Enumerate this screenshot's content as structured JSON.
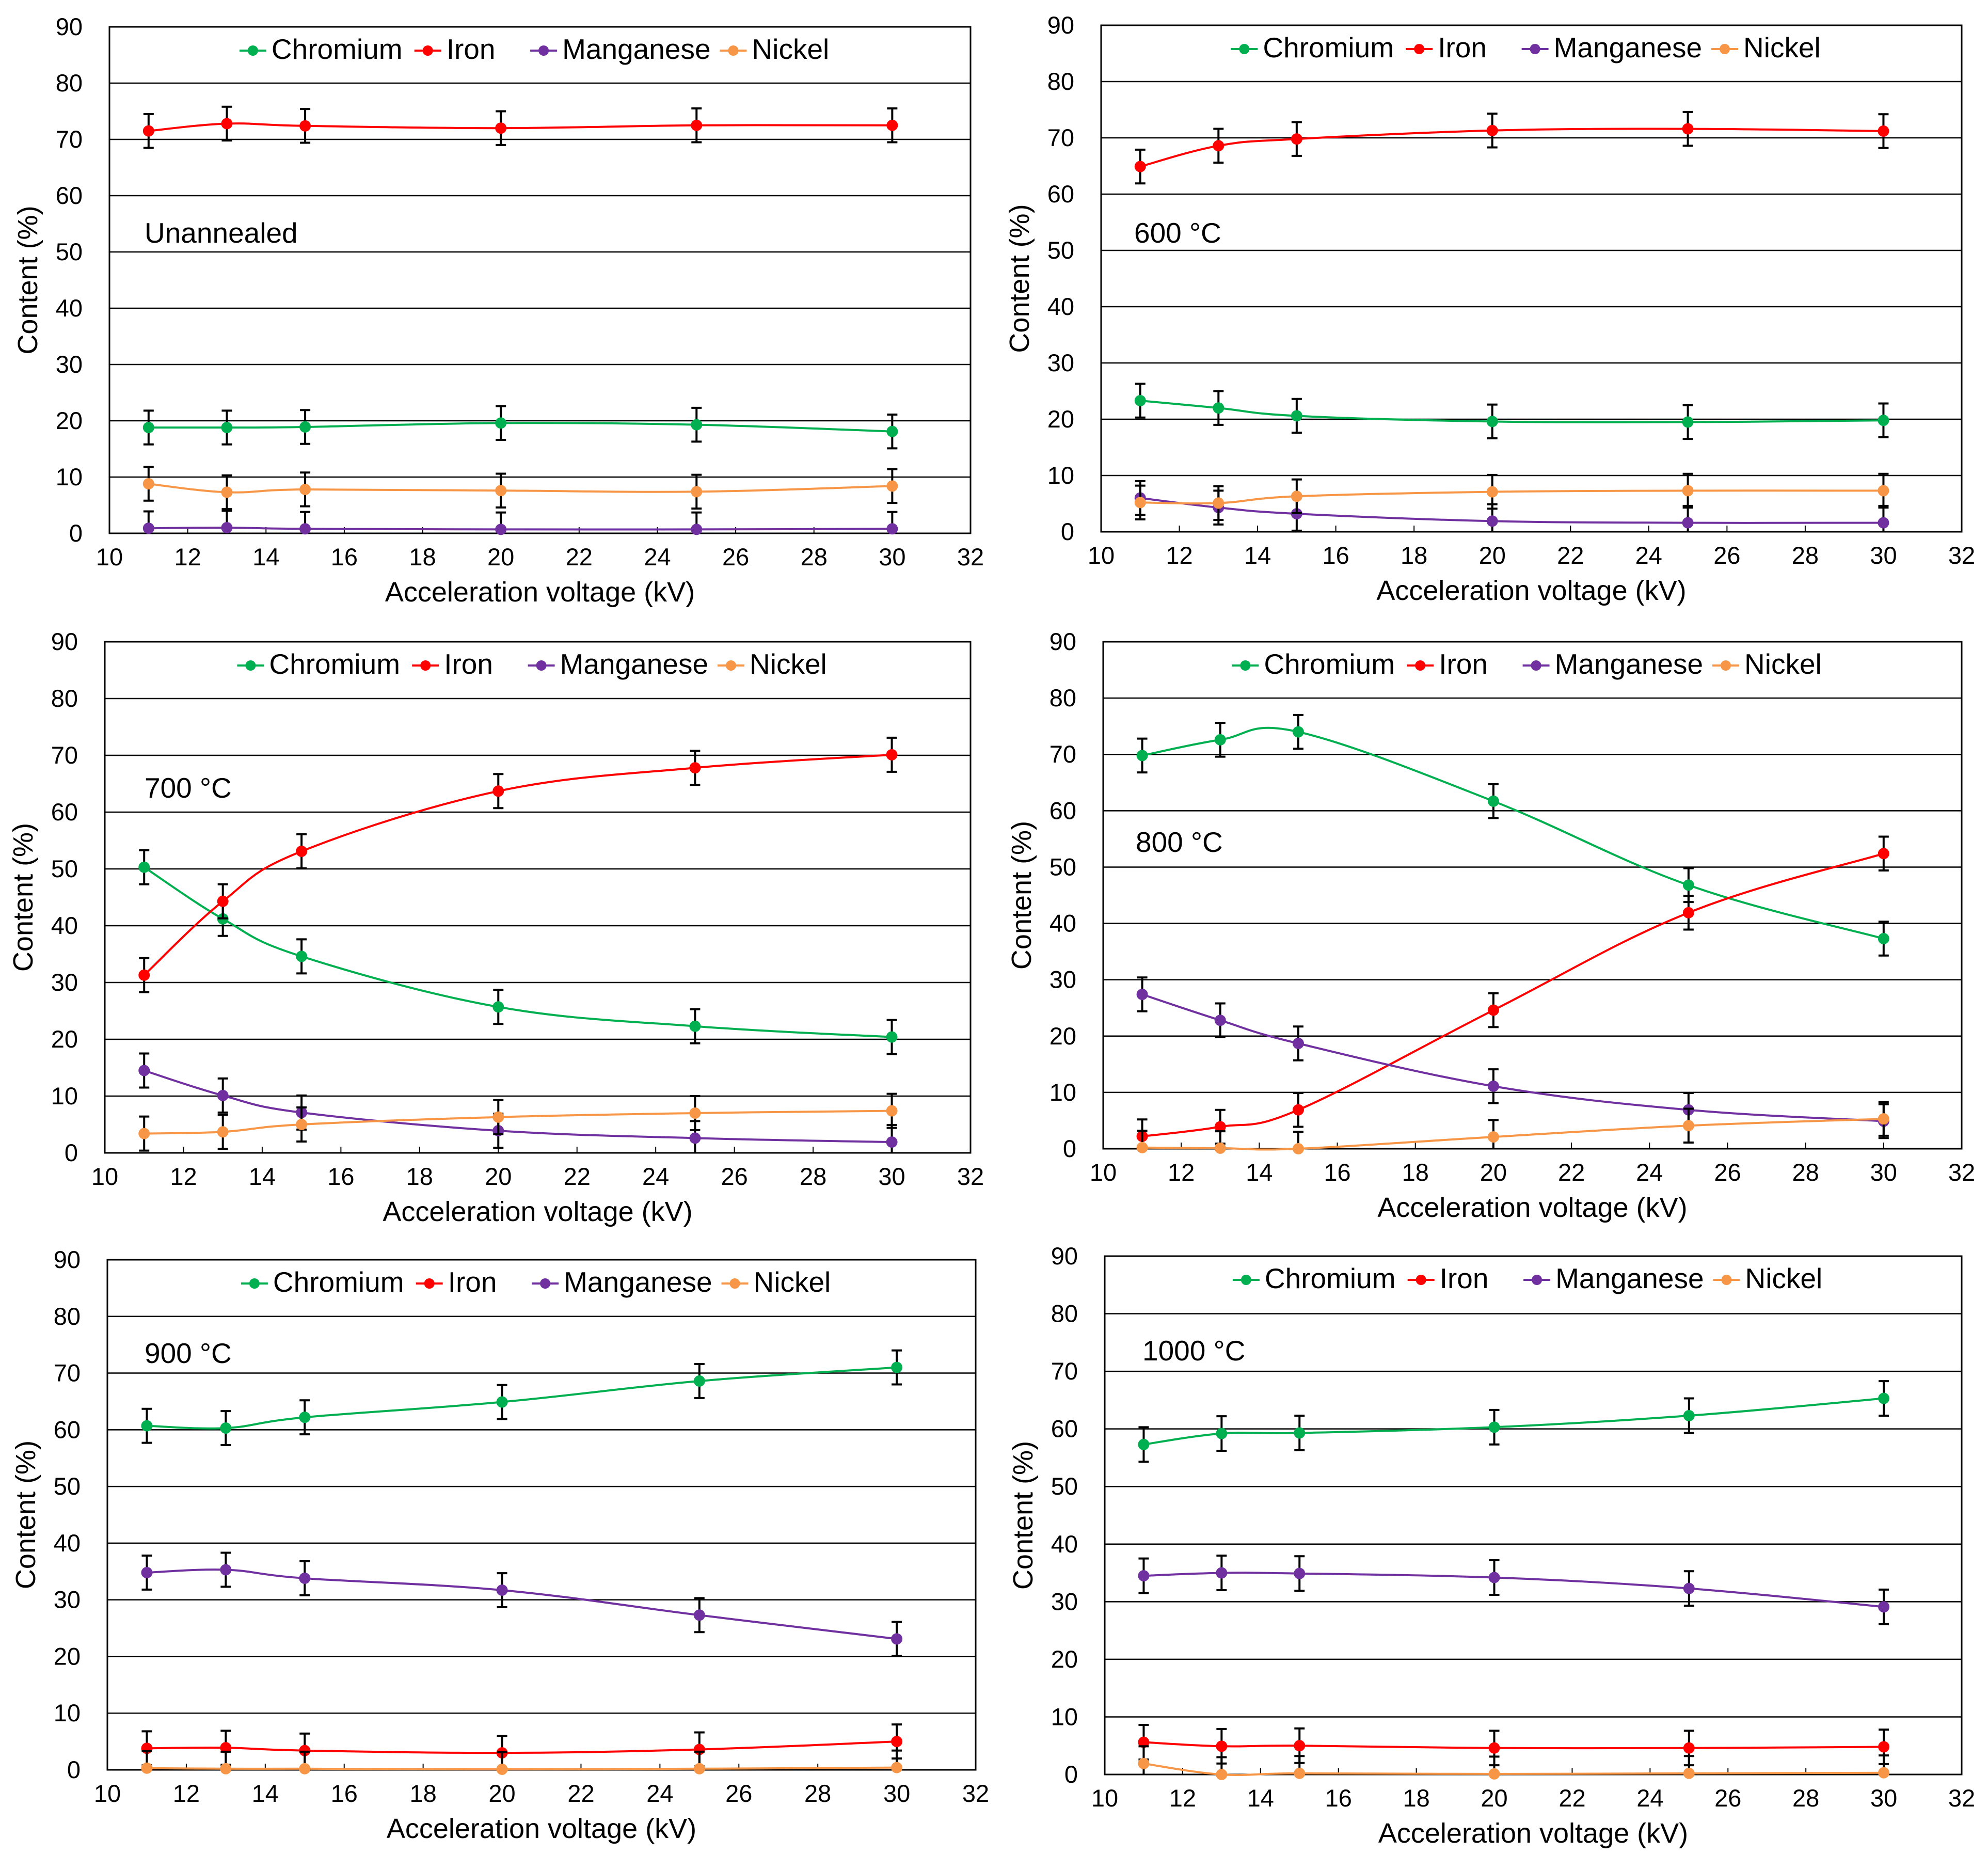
{
  "chart_data": [
    {
      "type": "line",
      "annotation": "Unannealed",
      "xlabel": "Acceleration voltage (kV)",
      "ylabel": "Content (%)",
      "xlim": [
        10,
        32
      ],
      "ylim": [
        0,
        90
      ],
      "x_ticks": [
        10,
        12,
        14,
        16,
        18,
        20,
        22,
        24,
        26,
        28,
        30,
        32
      ],
      "y_ticks": [
        0,
        10,
        20,
        30,
        40,
        50,
        60,
        70,
        80,
        90
      ],
      "legend": "top",
      "x": [
        11,
        13,
        15,
        20,
        25,
        30
      ],
      "series": [
        {
          "name": "Chromium",
          "color": "#00b050",
          "values": [
            18.8,
            18.8,
            18.9,
            19.6,
            19.3,
            18.1
          ]
        },
        {
          "name": "Iron",
          "color": "#ff0000",
          "values": [
            71.5,
            72.8,
            72.4,
            72.0,
            72.5,
            72.5
          ]
        },
        {
          "name": "Manganese",
          "color": "#7030a0",
          "values": [
            0.9,
            1.0,
            0.8,
            0.7,
            0.7,
            0.8
          ]
        },
        {
          "name": "Nickel",
          "color": "#f79646",
          "values": [
            8.8,
            7.3,
            7.8,
            7.6,
            7.4,
            8.4
          ]
        }
      ]
    },
    {
      "type": "line",
      "annotation": "600 °C",
      "xlabel": "Acceleration voltage (kV)",
      "ylabel": "Content (%)",
      "xlim": [
        10,
        32
      ],
      "ylim": [
        0,
        90
      ],
      "x_ticks": [
        10,
        12,
        14,
        16,
        18,
        20,
        22,
        24,
        26,
        28,
        30,
        32
      ],
      "y_ticks": [
        0,
        10,
        20,
        30,
        40,
        50,
        60,
        70,
        80,
        90
      ],
      "legend": "top",
      "x": [
        11,
        13,
        15,
        20,
        25,
        30
      ],
      "series": [
        {
          "name": "Chromium",
          "color": "#00b050",
          "values": [
            23.3,
            22.0,
            20.6,
            19.6,
            19.5,
            19.8
          ]
        },
        {
          "name": "Iron",
          "color": "#ff0000",
          "values": [
            64.9,
            68.6,
            69.8,
            71.3,
            71.6,
            71.2
          ]
        },
        {
          "name": "Manganese",
          "color": "#7030a0",
          "values": [
            6.0,
            4.3,
            3.2,
            1.9,
            1.6,
            1.6
          ]
        },
        {
          "name": "Nickel",
          "color": "#f79646",
          "values": [
            5.2,
            5.1,
            6.3,
            7.1,
            7.3,
            7.3
          ]
        }
      ]
    },
    {
      "type": "line",
      "annotation": "700 °C",
      "xlabel": "Acceleration voltage (kV)",
      "ylabel": "Content (%)",
      "xlim": [
        10,
        32
      ],
      "ylim": [
        0,
        90
      ],
      "x_ticks": [
        10,
        12,
        14,
        16,
        18,
        20,
        22,
        24,
        26,
        28,
        30,
        32
      ],
      "y_ticks": [
        0,
        10,
        20,
        30,
        40,
        50,
        60,
        70,
        80,
        90
      ],
      "legend": "top",
      "x": [
        11,
        13,
        15,
        20,
        25,
        30
      ],
      "series": [
        {
          "name": "Chromium",
          "color": "#00b050",
          "values": [
            50.3,
            41.2,
            34.6,
            25.7,
            22.3,
            20.4
          ]
        },
        {
          "name": "Iron",
          "color": "#ff0000",
          "values": [
            31.3,
            44.3,
            53.1,
            63.7,
            67.8,
            70.1
          ]
        },
        {
          "name": "Manganese",
          "color": "#7030a0",
          "values": [
            14.5,
            10.1,
            7.1,
            3.9,
            2.6,
            1.9
          ]
        },
        {
          "name": "Nickel",
          "color": "#f79646",
          "values": [
            3.4,
            3.7,
            5.0,
            6.3,
            7.0,
            7.4
          ]
        }
      ]
    },
    {
      "type": "line",
      "annotation": "800 °C",
      "xlabel": "Acceleration voltage (kV)",
      "ylabel": "Content (%)",
      "xlim": [
        10,
        32
      ],
      "ylim": [
        0,
        90
      ],
      "x_ticks": [
        10,
        12,
        14,
        16,
        18,
        20,
        22,
        24,
        26,
        28,
        30,
        32
      ],
      "y_ticks": [
        0,
        10,
        20,
        30,
        40,
        50,
        60,
        70,
        80,
        90
      ],
      "legend": "top",
      "x": [
        11,
        13,
        15,
        20,
        25,
        30
      ],
      "series": [
        {
          "name": "Chromium",
          "color": "#00b050",
          "values": [
            69.8,
            72.6,
            74.0,
            61.7,
            46.8,
            37.3
          ]
        },
        {
          "name": "Iron",
          "color": "#ff0000",
          "values": [
            2.2,
            3.9,
            6.9,
            24.6,
            41.9,
            52.4
          ]
        },
        {
          "name": "Manganese",
          "color": "#7030a0",
          "values": [
            27.4,
            22.8,
            18.7,
            11.1,
            6.9,
            4.9
          ]
        },
        {
          "name": "Nickel",
          "color": "#f79646",
          "values": [
            0.2,
            0.1,
            0.0,
            2.1,
            4.1,
            5.3
          ]
        }
      ]
    },
    {
      "type": "line",
      "annotation": "900 °C",
      "xlabel": "Acceleration voltage (kV)",
      "ylabel": "Content (%)",
      "xlim": [
        10,
        32
      ],
      "ylim": [
        0,
        90
      ],
      "x_ticks": [
        10,
        12,
        14,
        16,
        18,
        20,
        22,
        24,
        26,
        28,
        30,
        32
      ],
      "y_ticks": [
        0,
        10,
        20,
        30,
        40,
        50,
        60,
        70,
        80,
        90
      ],
      "legend": "top",
      "x": [
        11,
        13,
        15,
        20,
        25,
        30
      ],
      "series": [
        {
          "name": "Chromium",
          "color": "#00b050",
          "values": [
            60.7,
            60.3,
            62.2,
            64.9,
            68.6,
            71.0
          ]
        },
        {
          "name": "Iron",
          "color": "#ff0000",
          "values": [
            3.8,
            3.9,
            3.4,
            3.0,
            3.6,
            5.0
          ]
        },
        {
          "name": "Manganese",
          "color": "#7030a0",
          "values": [
            34.8,
            35.3,
            33.8,
            31.7,
            27.3,
            23.1
          ]
        },
        {
          "name": "Nickel",
          "color": "#f79646",
          "values": [
            0.3,
            0.2,
            0.2,
            0.1,
            0.2,
            0.4
          ]
        }
      ]
    },
    {
      "type": "line",
      "annotation": "1000 °C",
      "xlabel": "Acceleration voltage (kV)",
      "ylabel": "Content (%)",
      "xlim": [
        10,
        32
      ],
      "ylim": [
        0,
        90
      ],
      "x_ticks": [
        10,
        12,
        14,
        16,
        18,
        20,
        22,
        24,
        26,
        28,
        30,
        32
      ],
      "y_ticks": [
        0,
        10,
        20,
        30,
        40,
        50,
        60,
        70,
        80,
        90
      ],
      "legend": "top",
      "x": [
        11,
        13,
        15,
        20,
        25,
        30
      ],
      "series": [
        {
          "name": "Chromium",
          "color": "#00b050",
          "values": [
            57.3,
            59.2,
            59.3,
            60.3,
            62.3,
            65.3
          ]
        },
        {
          "name": "Iron",
          "color": "#ff0000",
          "values": [
            5.6,
            4.9,
            5.0,
            4.6,
            4.6,
            4.8
          ]
        },
        {
          "name": "Manganese",
          "color": "#7030a0",
          "values": [
            34.5,
            35.0,
            34.9,
            34.2,
            32.3,
            29.1
          ]
        },
        {
          "name": "Nickel",
          "color": "#f79646",
          "values": [
            1.9,
            0.0,
            0.2,
            0.1,
            0.2,
            0.3
          ]
        }
      ]
    }
  ]
}
